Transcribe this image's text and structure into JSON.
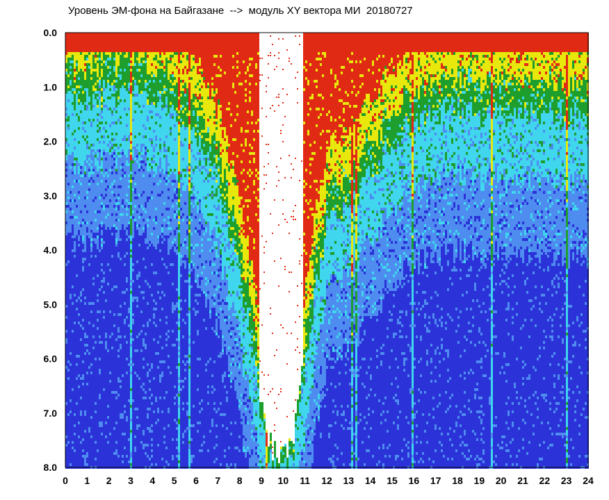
{
  "chart_data": {
    "type": "heatmap",
    "title": "Уровень ЭМ-фона на Байгазане  -->  модуль XY вектора МИ  20180727",
    "xlabel": "",
    "ylabel": "",
    "x_ticks": [
      "0",
      "1",
      "2",
      "3",
      "4",
      "5",
      "6",
      "7",
      "8",
      "9",
      "10",
      "11",
      "12",
      "13",
      "14",
      "15",
      "16",
      "17",
      "18",
      "19",
      "20",
      "21",
      "22",
      "23",
      "24"
    ],
    "y_ticks": [
      "0.0",
      "1.0",
      "2.0",
      "3.0",
      "4.0",
      "5.0",
      "6.0",
      "7.0",
      "8.0"
    ],
    "xlim": [
      0,
      24
    ],
    "ylim": [
      0,
      8
    ],
    "y_inverted": true,
    "grid": false,
    "color_scale": [
      "#2a32d8",
      "#4f8cf0",
      "#3fd6ee",
      "#1e9e2c",
      "#e8e80c",
      "#e12a14"
    ],
    "profile": {
      "hour": [
        0,
        2,
        4,
        5,
        6,
        7,
        7.5,
        8,
        8.5,
        9,
        9.5,
        10,
        10.5,
        11,
        11.5,
        12,
        13,
        14,
        15,
        16,
        18,
        20,
        22,
        24
      ],
      "level": [
        1.2,
        1.1,
        1.1,
        1.3,
        1.8,
        2.8,
        3.6,
        4.6,
        5.6,
        7.2,
        8.0,
        8.0,
        7.6,
        6.0,
        4.5,
        3.5,
        3.2,
        2.6,
        2.0,
        1.6,
        1.4,
        1.5,
        1.4,
        1.6
      ]
    }
  }
}
